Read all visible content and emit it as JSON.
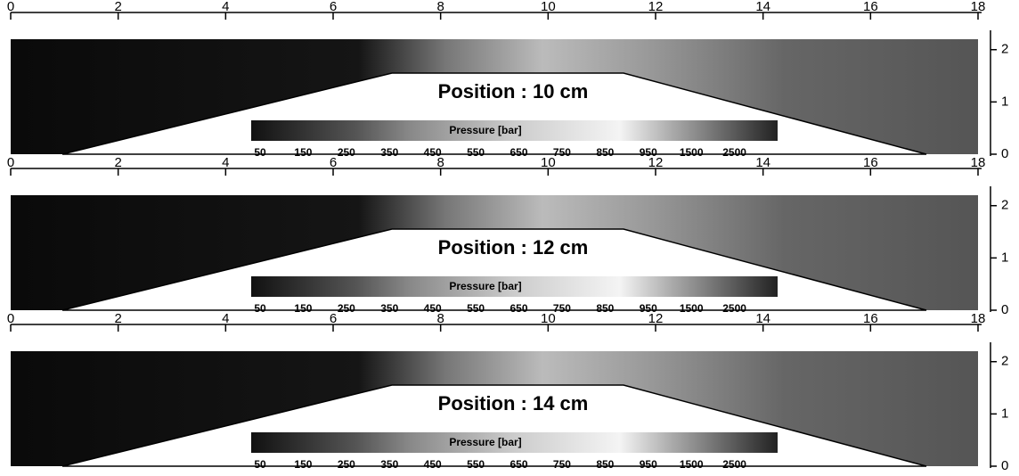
{
  "chart_data": [
    {
      "type": "contour",
      "annotation": "Position : 10 cm",
      "colorbar_title": "Pressure [bar]",
      "colorbar_labels": [
        50,
        150,
        250,
        350,
        450,
        550,
        650,
        750,
        850,
        950,
        1500,
        2500
      ],
      "xlim": [
        0,
        18
      ],
      "xticks": [
        0,
        2,
        4,
        6,
        8,
        10,
        12,
        14,
        16,
        18
      ],
      "ylim": [
        0,
        2.2
      ],
      "yticks": [
        0,
        1,
        2
      ]
    },
    {
      "type": "contour",
      "annotation": "Position : 12 cm",
      "colorbar_title": "Pressure [bar]",
      "colorbar_labels": [
        50,
        150,
        250,
        350,
        450,
        550,
        650,
        750,
        850,
        950,
        1500,
        2500
      ],
      "xlim": [
        0,
        18
      ],
      "xticks": [
        0,
        2,
        4,
        6,
        8,
        10,
        12,
        14,
        16,
        18
      ],
      "ylim": [
        0,
        2.2
      ],
      "yticks": [
        0,
        1,
        2
      ]
    },
    {
      "type": "contour",
      "annotation": "Position : 14 cm",
      "colorbar_title": "Pressure [bar]",
      "colorbar_labels": [
        50,
        150,
        250,
        350,
        450,
        550,
        650,
        750,
        850,
        950,
        1500,
        2500
      ],
      "xlim": [
        0,
        18
      ],
      "xticks": [
        0,
        2,
        4,
        6,
        8,
        10,
        12,
        14,
        16,
        18
      ],
      "ylim": [
        0,
        2.2
      ],
      "yticks": [
        0,
        1,
        2
      ]
    }
  ]
}
